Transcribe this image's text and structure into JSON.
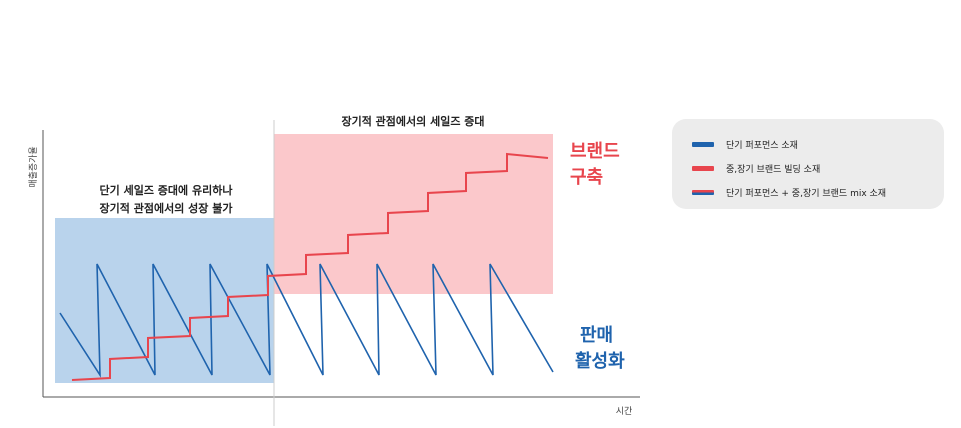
{
  "chart_data": {
    "type": "line",
    "ylabel": "매출증가율",
    "xlabel": "시간",
    "regions": {
      "left_label": [
        "단기 세일즈 증대에 유리하나",
        "장기적 관점에서의 성장 불가"
      ],
      "right_label": "장기적 관점에서의 세일즈 증대",
      "brand_label": [
        "브랜드",
        "구축"
      ],
      "activation_label": [
        "판매",
        "활성화"
      ]
    },
    "series": [
      {
        "name": "단기 퍼포먼스 소재",
        "style": "sawtooth",
        "cycles": 9
      },
      {
        "name": "중,장기 브랜드 빌딩 소재",
        "style": "step",
        "steps": 9
      },
      {
        "name": "단기 퍼포먼스 + 중,장기 브랜드 mix 소재",
        "style": "step-combined"
      }
    ],
    "colors": {
      "performance": "#1f63ad",
      "brand": "#e8454d",
      "blue_region": "#b9d3ec",
      "pink_region": "#fbc8cb",
      "mix_top": "#e8454d",
      "mix_bottom": "#1f63ad"
    }
  },
  "legend": {
    "items": [
      {
        "label": "단기 퍼포먼스 소재",
        "color": "#1f63ad"
      },
      {
        "label": "중,장기 브랜드 빌딩 소재",
        "color": "#e8454d"
      },
      {
        "label": "단기 퍼포먼스 + 중,장기 브랜드 mix 소재",
        "color": "mix"
      }
    ]
  }
}
